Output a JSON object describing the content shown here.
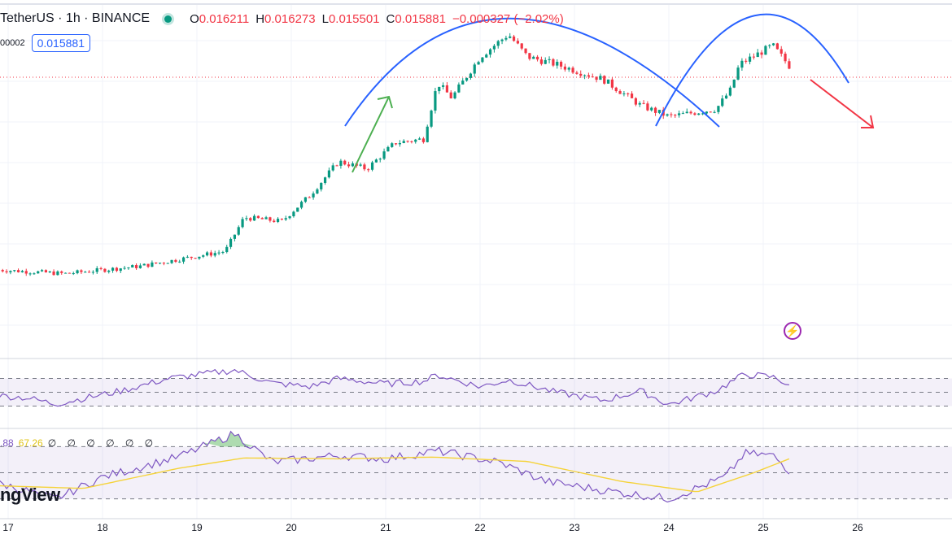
{
  "legend": {
    "symbol": "TetherUS · 1h · BINANCE",
    "open_label": "O",
    "open": "0.016211",
    "high_label": "H",
    "high": "0.016273",
    "low_label": "L",
    "low": "0.015501",
    "close_label": "C",
    "close": "0.015881",
    "change": "−0.000327 (−2.02%)"
  },
  "sub": {
    "left_value": "00002",
    "price_badge": "0.015881"
  },
  "indicator_legend": {
    "v1": ".88",
    "v2": "67.26",
    "rest": "∅ ∅ ∅ ∅ ∅ ∅"
  },
  "brand": "ngView",
  "icons": {
    "alert": "lightning-icon",
    "status": "status-dot-icon"
  },
  "colors": {
    "up": "#089981",
    "down": "#f23645",
    "arc": "#2962ff",
    "rsi": "#7e57c2",
    "ma": "#f5d33a"
  },
  "chart_data": {
    "type": "candlestick",
    "x_ticks": [
      "17",
      "18",
      "19",
      "20",
      "21",
      "22",
      "23",
      "24",
      "25",
      "26"
    ],
    "current_price": 0.015881,
    "price_keypoints": [
      {
        "day": 16.9,
        "close": 0.0105
      },
      {
        "day": 17.6,
        "close": 0.0104
      },
      {
        "day": 18.4,
        "close": 0.0106
      },
      {
        "day": 19.3,
        "close": 0.011
      },
      {
        "day": 19.5,
        "close": 0.0119
      },
      {
        "day": 19.9,
        "close": 0.0118
      },
      {
        "day": 20.2,
        "close": 0.0125
      },
      {
        "day": 20.5,
        "close": 0.0134
      },
      {
        "day": 20.8,
        "close": 0.0132
      },
      {
        "day": 21.1,
        "close": 0.0139
      },
      {
        "day": 21.4,
        "close": 0.014
      },
      {
        "day": 21.55,
        "close": 0.0155
      },
      {
        "day": 21.7,
        "close": 0.0151
      },
      {
        "day": 22.0,
        "close": 0.0162
      },
      {
        "day": 22.3,
        "close": 0.0168
      },
      {
        "day": 22.5,
        "close": 0.0162
      },
      {
        "day": 22.8,
        "close": 0.016
      },
      {
        "day": 23.3,
        "close": 0.0156
      },
      {
        "day": 23.7,
        "close": 0.0149
      },
      {
        "day": 24.0,
        "close": 0.0146
      },
      {
        "day": 24.5,
        "close": 0.0148
      },
      {
        "day": 24.65,
        "close": 0.0153
      },
      {
        "day": 24.75,
        "close": 0.016
      },
      {
        "day": 25.1,
        "close": 0.0165
      },
      {
        "day": 25.3,
        "close": 0.01588
      }
    ],
    "rsi_band": [
      30,
      70
    ],
    "rsi_keypoints": [
      {
        "day": 16.9,
        "rsi": 45
      },
      {
        "day": 17.2,
        "rsi": 42
      },
      {
        "day": 17.5,
        "rsi": 33
      },
      {
        "day": 18.2,
        "rsi": 52
      },
      {
        "day": 18.7,
        "rsi": 70
      },
      {
        "day": 19.4,
        "rsi": 82
      },
      {
        "day": 19.8,
        "rsi": 63
      },
      {
        "day": 20.2,
        "rsi": 58
      },
      {
        "day": 20.5,
        "rsi": 70
      },
      {
        "day": 21.0,
        "rsi": 62
      },
      {
        "day": 21.4,
        "rsi": 66
      },
      {
        "day": 21.55,
        "rsi": 75
      },
      {
        "day": 22.0,
        "rsi": 58
      },
      {
        "day": 22.3,
        "rsi": 68
      },
      {
        "day": 22.8,
        "rsi": 50
      },
      {
        "day": 23.3,
        "rsi": 38
      },
      {
        "day": 23.7,
        "rsi": 52
      },
      {
        "day": 24.0,
        "rsi": 32
      },
      {
        "day": 24.5,
        "rsi": 52
      },
      {
        "day": 24.8,
        "rsi": 76
      },
      {
        "day": 25.1,
        "rsi": 72
      },
      {
        "day": 25.3,
        "rsi": 60
      }
    ],
    "stoch_keypoints": [
      {
        "day": 16.9,
        "k": 38
      },
      {
        "day": 17.5,
        "k": 20
      },
      {
        "day": 18.0,
        "k": 45
      },
      {
        "day": 18.8,
        "k": 68
      },
      {
        "day": 19.4,
        "k": 95
      },
      {
        "day": 19.8,
        "k": 62
      },
      {
        "day": 20.5,
        "k": 70
      },
      {
        "day": 21.0,
        "k": 66
      },
      {
        "day": 21.55,
        "k": 75
      },
      {
        "day": 22.2,
        "k": 62
      },
      {
        "day": 22.7,
        "k": 40
      },
      {
        "day": 23.3,
        "k": 30
      },
      {
        "day": 24.0,
        "k": 20
      },
      {
        "day": 24.6,
        "k": 45
      },
      {
        "day": 24.8,
        "k": 72
      },
      {
        "day": 25.1,
        "k": 70
      },
      {
        "day": 25.3,
        "k": 50
      }
    ],
    "stoch_ma_keypoints": [
      {
        "day": 16.9,
        "d": 35
      },
      {
        "day": 17.8,
        "d": 32
      },
      {
        "day": 18.8,
        "d": 55
      },
      {
        "day": 19.5,
        "d": 67
      },
      {
        "day": 20.5,
        "d": 66
      },
      {
        "day": 21.5,
        "d": 68
      },
      {
        "day": 22.5,
        "d": 63
      },
      {
        "day": 23.5,
        "d": 40
      },
      {
        "day": 24.3,
        "d": 28
      },
      {
        "day": 24.9,
        "d": 50
      },
      {
        "day": 25.3,
        "d": 67
      }
    ]
  }
}
